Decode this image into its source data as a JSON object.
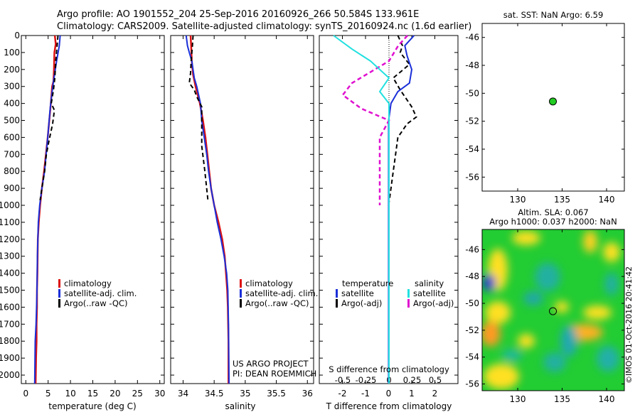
{
  "header": {
    "line1": "Argo profile: AO 1901552_204 25-Sep-2016 20160926_266 50.584S 133.961E",
    "line2": "Climatology: CARS2009. Satellite-adjusted climatology: synTS_20160924.nc (1.6d earlier)"
  },
  "credit": "©IMOS 01-Oct-2016 20:41:42",
  "colors": {
    "climatology": "#dd1111",
    "satellite": "#1a2fd8",
    "argo": "#000000",
    "sal_satellite": "#22e0e0",
    "sal_argo": "#e010d0",
    "marker": "#22cc22"
  },
  "legend": {
    "climatology": "climatology",
    "satellite_adj": "satellite-adj. clim.",
    "argo_raw": "Argo(..raw -QC)",
    "temperature": "temperature",
    "salinity": "salinity",
    "satellite": "satellite",
    "argo_adj": "Argo(-adj)"
  },
  "annotations": {
    "project": "US ARGO PROJECT",
    "pi": "PI: DEAN ROEMMICH"
  },
  "panels": {
    "sst_title": "sat. SST: NaN Argo: 6.59",
    "sla_title1": "Altim. SLA: 0.067",
    "sla_title2": "Argo h1000: 0.037 h2000: NaN"
  },
  "chart_data": [
    {
      "type": "line",
      "id": "temperature",
      "xlabel": "temperature (deg C)",
      "xlim": [
        -1,
        31
      ],
      "xticks": [
        0,
        5,
        10,
        15,
        20,
        25,
        30
      ],
      "ylim": [
        2050,
        0
      ],
      "yticks": [
        0,
        100,
        200,
        300,
        400,
        500,
        600,
        700,
        800,
        900,
        1000,
        1100,
        1200,
        1300,
        1400,
        1500,
        1600,
        1700,
        1800,
        1900,
        2000
      ],
      "series": [
        {
          "name": "climatology",
          "x": [
            6.5,
            6.7,
            6.4,
            6.3,
            6.2,
            5.9,
            5.6,
            4.9,
            4.1,
            3.6,
            3.2,
            2.9,
            2.7,
            2.6,
            2.5,
            2.5,
            2.4,
            2.4,
            2.3,
            2.2
          ],
          "y": [
            0,
            50,
            100,
            200,
            270,
            300,
            400,
            600,
            800,
            900,
            1000,
            1100,
            1200,
            1400,
            1500,
            1600,
            1700,
            1800,
            1900,
            2050
          ]
        },
        {
          "name": "satellite-adj. clim.",
          "x": [
            7.7,
            7.5,
            6.9,
            6.2,
            5.8,
            5.5,
            4.9,
            4.2,
            3.6,
            3.1,
            2.8,
            2.6,
            2.5,
            2.4,
            2.3,
            2.1,
            2.0
          ],
          "y": [
            0,
            60,
            150,
            270,
            350,
            420,
            600,
            800,
            900,
            1000,
            1100,
            1300,
            1500,
            1600,
            1700,
            1800,
            2050
          ]
        },
        {
          "name": "Argo(..raw -QC)",
          "x": [
            7.2,
            7.0,
            6.7,
            6.5,
            6.2,
            5.7,
            6.4,
            6.0,
            5.2,
            4.6,
            4.2,
            3.6,
            3.2
          ],
          "y": [
            0,
            60,
            150,
            250,
            320,
            400,
            440,
            520,
            620,
            700,
            800,
            900,
            970
          ]
        }
      ]
    },
    {
      "type": "line",
      "id": "salinity",
      "xlabel": "salinity",
      "xlim": [
        33.8,
        36.1
      ],
      "xticks": [
        34,
        34.5,
        35,
        35.5,
        36
      ],
      "ylim": [
        2050,
        0
      ],
      "series": [
        {
          "name": "climatology",
          "x": [
            34.12,
            34.13,
            34.14,
            34.16,
            34.2,
            34.27,
            34.32,
            34.36,
            34.39,
            34.42,
            34.45,
            34.5,
            34.57,
            34.63,
            34.67,
            34.69,
            34.71,
            34.72,
            34.73,
            34.73
          ],
          "y": [
            0,
            60,
            150,
            230,
            300,
            400,
            500,
            600,
            700,
            800,
            900,
            1000,
            1100,
            1200,
            1300,
            1400,
            1500,
            1600,
            1800,
            2050
          ]
        },
        {
          "name": "satellite-adj. clim.",
          "x": [
            34.05,
            34.07,
            34.1,
            34.14,
            34.18,
            34.22,
            34.28,
            34.3,
            34.34,
            34.38,
            34.41,
            34.45,
            34.5,
            34.55,
            34.61,
            34.66,
            34.7,
            34.72,
            34.73,
            34.74
          ],
          "y": [
            0,
            60,
            100,
            150,
            250,
            300,
            400,
            500,
            600,
            700,
            800,
            900,
            1000,
            1100,
            1200,
            1300,
            1400,
            1500,
            1700,
            2050
          ]
        },
        {
          "name": "Argo(..raw -QC)",
          "x": [
            34.16,
            34.15,
            34.13,
            34.12,
            34.1,
            34.18,
            34.22,
            34.26,
            34.3,
            34.3,
            34.3,
            34.35,
            34.4
          ],
          "y": [
            0,
            60,
            150,
            220,
            280,
            320,
            360,
            390,
            420,
            500,
            650,
            800,
            970
          ]
        }
      ],
      "annotations": [
        "US ARGO PROJECT",
        "PI: DEAN ROEMMICH"
      ]
    },
    {
      "type": "line",
      "id": "difference",
      "xlabel": "T difference from climatology",
      "xlabel2": "S difference from climatology",
      "xlim": [
        -3,
        3
      ],
      "xticks": [
        -2,
        -1,
        0,
        1,
        2
      ],
      "s_xticks": [
        -0.5,
        -0.25,
        0,
        0.25,
        0.5
      ],
      "ylim": [
        2050,
        0
      ],
      "legend_titles": [
        "temperature",
        "salinity"
      ],
      "series": [
        {
          "name": "satellite",
          "group": "temperature",
          "x": [
            1.1,
            0.7,
            0.8,
            1.0,
            0.9,
            0.4,
            0.1,
            0.0,
            0.0,
            0.0,
            0.0,
            0.0,
            0.0
          ],
          "y": [
            0,
            60,
            120,
            200,
            280,
            330,
            400,
            500,
            600,
            800,
            1000,
            1500,
            2050
          ]
        },
        {
          "name": "Argo(-adj)",
          "group": "temperature",
          "x": [
            0.4,
            0.6,
            0.5,
            0.9,
            0.2,
            0.5,
            1.0,
            1.2,
            0.8,
            0.4,
            0.3,
            0.2,
            0.1,
            0.0,
            0.0
          ],
          "y": [
            0,
            60,
            100,
            170,
            250,
            320,
            420,
            480,
            520,
            600,
            700,
            800,
            900,
            1000,
            1050
          ]
        },
        {
          "name": "satellite",
          "group": "salinity",
          "x": [
            -0.6,
            -0.4,
            -0.2,
            0.0,
            -0.1,
            0.0,
            0.0,
            0.0,
            0.0,
            0.0
          ],
          "y": [
            0,
            80,
            150,
            250,
            330,
            400,
            600,
            1000,
            1500,
            2050
          ]
        },
        {
          "name": "Argo(-adj)",
          "group": "salinity",
          "x": [
            0.2,
            0.1,
            0.0,
            -0.4,
            -0.5,
            -0.3,
            0.0,
            -0.1,
            -0.1,
            -0.1,
            -0.1,
            -0.1
          ],
          "y": [
            0,
            60,
            150,
            280,
            350,
            430,
            500,
            600,
            700,
            800,
            900,
            1000
          ]
        }
      ]
    },
    {
      "type": "scatter",
      "id": "sst-map",
      "title": "sat. SST: NaN Argo: 6.59",
      "xlim": [
        126,
        142
      ],
      "ylim": [
        -57,
        -45
      ],
      "xticks": [
        130,
        135,
        140
      ],
      "yticks": [
        -56,
        -54,
        -52,
        -50,
        -48,
        -46
      ],
      "points": [
        {
          "x": 133.961,
          "y": -50.584
        }
      ]
    },
    {
      "type": "heatmap",
      "id": "sla-map",
      "title": "Altim. SLA: 0.067",
      "subtitle": "Argo h1000: 0.037 h2000: NaN",
      "xlim": [
        126,
        142
      ],
      "ylim": [
        -56.5,
        -44.5
      ],
      "xticks": [
        130,
        135,
        140
      ],
      "yticks": [
        -56,
        -54,
        -52,
        -50,
        -48,
        -46
      ],
      "points": [
        {
          "x": 133.961,
          "y": -50.584
        }
      ]
    }
  ]
}
